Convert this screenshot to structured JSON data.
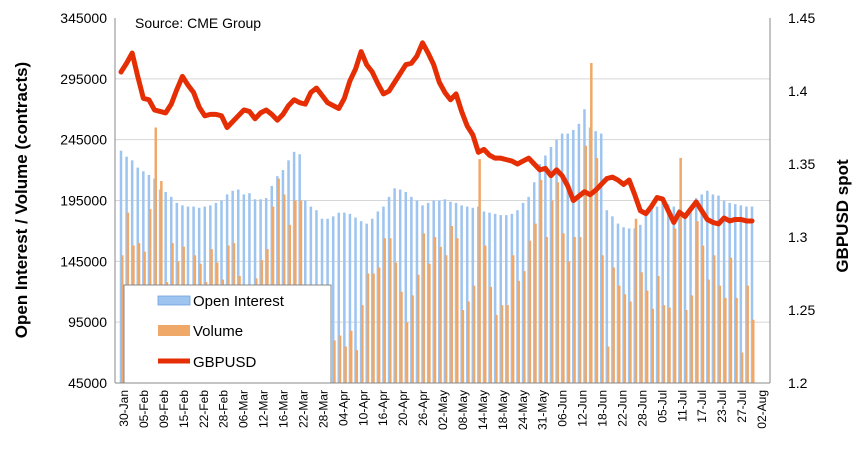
{
  "chart_data": {
    "type": "bar-line-combo",
    "source": "Source: CME Group",
    "ylabel_left": "Open Interest / Volume (contracts)",
    "ylabel_right": "GBPUSD spot",
    "ylim_left": [
      45000,
      345000
    ],
    "ylim_right": [
      1.2,
      1.45
    ],
    "yticks_left": [
      "345000",
      "295000",
      "245000",
      "195000",
      "145000",
      "95000",
      "45000"
    ],
    "yticks_right": [
      "1.45",
      "1.4",
      "1.35",
      "1.3",
      "1.25",
      "1.2"
    ],
    "xticks": [
      "30-Jan",
      "05-Feb",
      "09-Feb",
      "15-Feb",
      "22-Feb",
      "28-Feb",
      "06-Mar",
      "12-Mar",
      "16-Mar",
      "22-Mar",
      "28-Mar",
      "04-Apr",
      "10-Apr",
      "16-Apr",
      "20-Apr",
      "26-Apr",
      "02-May",
      "08-May",
      "14-May",
      "18-May",
      "24-May",
      "31-May",
      "06-Jun",
      "12-Jun",
      "18-Jun",
      "22-Jun",
      "28-Jun",
      "05-Jul",
      "11-Jul",
      "17-Jul",
      "23-Jul",
      "27-Jul",
      "02-Aug"
    ],
    "legend": [
      "Open Interest",
      "Volume",
      "GBPUSD"
    ],
    "colors": {
      "open_interest": "#9ec4f0",
      "volume": "#f0a868",
      "gbpusd": "#e62e04"
    },
    "series": [
      {
        "name": "Open Interest",
        "values": [
          236000,
          231000,
          228000,
          222000,
          219000,
          216000,
          213000,
          204000,
          202000,
          198000,
          193000,
          191000,
          190000,
          190000,
          189000,
          190000,
          191000,
          193000,
          195000,
          200000,
          203000,
          204000,
          200000,
          201000,
          196000,
          196000,
          197000,
          207000,
          215000,
          220000,
          228000,
          235000,
          233000,
          195000,
          190000,
          187000,
          180000,
          180000,
          182000,
          185000,
          185000,
          184000,
          181000,
          178000,
          176000,
          180000,
          186000,
          190000,
          198000,
          205000,
          204000,
          202000,
          198000,
          195000,
          191000,
          193000,
          195000,
          195000,
          196000,
          194000,
          193000,
          191000,
          190000,
          189000,
          190000,
          186000,
          185000,
          184000,
          183000,
          183000,
          184000,
          187000,
          193000,
          198000,
          210000,
          225000,
          232000,
          239000,
          245000,
          250000,
          250000,
          253000,
          258000,
          270000,
          255000,
          252000,
          250000,
          187000,
          182000,
          176000,
          173000,
          172000,
          172000,
          175000,
          185000,
          188000,
          190000,
          193000,
          192000,
          190000,
          188000,
          185000,
          185000,
          197000,
          200000,
          203000,
          200000,
          199000,
          195000,
          193000,
          192000,
          191000,
          190000,
          190000
        ]
      },
      {
        "name": "Volume",
        "values": [
          150000,
          185000,
          158000,
          160000,
          153000,
          188000,
          255000,
          211000,
          128000,
          160000,
          145000,
          157000,
          125000,
          150000,
          143000,
          128000,
          155000,
          144000,
          130000,
          158000,
          160000,
          133000,
          118000,
          123000,
          131000,
          146000,
          155000,
          190000,
          213000,
          200000,
          175000,
          195000,
          195000,
          103000,
          93000,
          87000,
          110000,
          96000,
          80000,
          84000,
          75000,
          88000,
          72000,
          109000,
          135000,
          135000,
          140000,
          164000,
          164000,
          144000,
          120000,
          95000,
          117000,
          134000,
          168000,
          143000,
          165000,
          157000,
          150000,
          174000,
          164000,
          105000,
          112000,
          125000,
          229000,
          158000,
          124000,
          101000,
          109000,
          109000,
          150000,
          129000,
          137000,
          162000,
          176000,
          212000,
          165000,
          195000,
          210000,
          168000,
          145000,
          165000,
          165000,
          240000,
          308000,
          230000,
          150000,
          75000,
          140000,
          125000,
          118000,
          112000,
          180000,
          136000,
          121000,
          106000,
          133000,
          109000,
          107000,
          172000,
          230000,
          105000,
          117000,
          178000,
          158000,
          130000,
          150000,
          125000,
          115000,
          148000,
          115000,
          70000,
          125000,
          97000
        ]
      },
      {
        "name": "GBPUSD",
        "values": [
          1.413,
          1.419,
          1.426,
          1.41,
          1.395,
          1.394,
          1.387,
          1.386,
          1.385,
          1.391,
          1.401,
          1.41,
          1.404,
          1.399,
          1.389,
          1.383,
          1.384,
          1.384,
          1.383,
          1.375,
          1.379,
          1.383,
          1.387,
          1.386,
          1.381,
          1.385,
          1.387,
          1.384,
          1.38,
          1.384,
          1.39,
          1.394,
          1.392,
          1.391,
          1.399,
          1.402,
          1.397,
          1.392,
          1.39,
          1.388,
          1.395,
          1.407,
          1.415,
          1.427,
          1.418,
          1.413,
          1.405,
          1.398,
          1.4,
          1.406,
          1.412,
          1.418,
          1.419,
          1.424,
          1.433,
          1.426,
          1.418,
          1.406,
          1.399,
          1.394,
          1.398,
          1.386,
          1.376,
          1.37,
          1.358,
          1.36,
          1.356,
          1.354,
          1.354,
          1.353,
          1.352,
          1.35,
          1.352,
          1.354,
          1.35,
          1.346,
          1.347,
          1.342,
          1.346,
          1.342,
          1.335,
          1.325,
          1.328,
          1.331,
          1.329,
          1.332,
          1.336,
          1.34,
          1.341,
          1.339,
          1.336,
          1.339,
          1.329,
          1.318,
          1.316,
          1.321,
          1.327,
          1.326,
          1.318,
          1.31,
          1.317,
          1.314,
          1.319,
          1.324,
          1.318,
          1.312,
          1.31,
          1.309,
          1.313,
          1.311,
          1.312,
          1.312,
          1.311,
          1.311
        ]
      }
    ]
  }
}
